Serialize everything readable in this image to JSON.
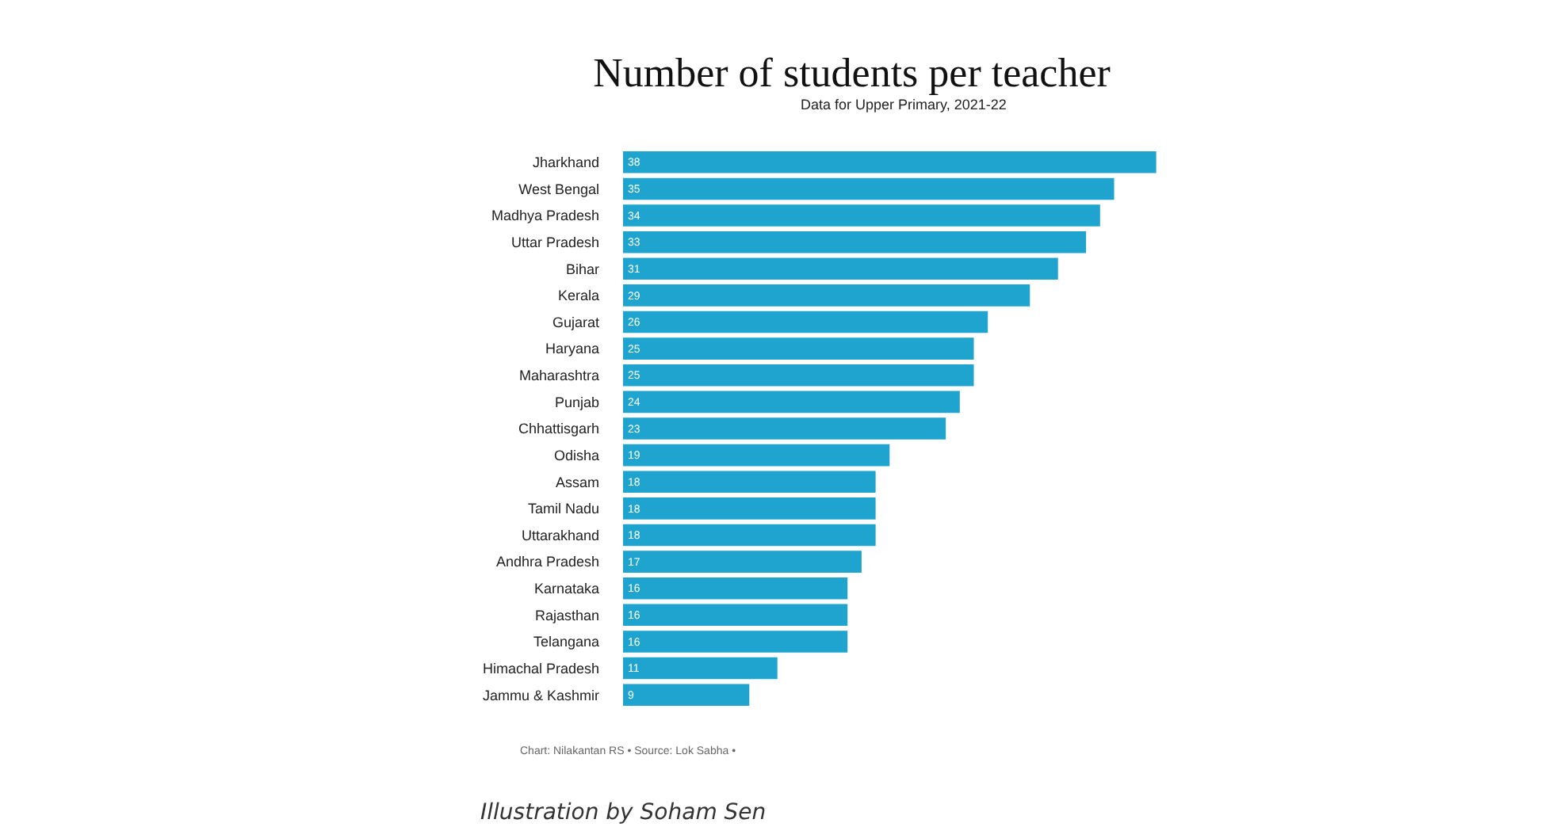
{
  "chart_data": {
    "type": "bar",
    "orientation": "horizontal",
    "title": "Number of students per teacher",
    "subtitle": "Data for Upper Primary, 2021-22",
    "categories": [
      "Jharkhand",
      "West Bengal",
      "Madhya Pradesh",
      "Uttar Pradesh",
      "Bihar",
      "Kerala",
      "Gujarat",
      "Haryana",
      "Maharashtra",
      "Punjab",
      "Chhattisgarh",
      "Odisha",
      "Assam",
      "Tamil Nadu",
      "Uttarakhand",
      "Andhra Pradesh",
      "Karnataka",
      "Rajasthan",
      "Telangana",
      "Himachal Pradesh",
      "Jammu & Kashmir"
    ],
    "values": [
      38,
      35,
      34,
      33,
      31,
      29,
      26,
      25,
      25,
      24,
      23,
      19,
      18,
      18,
      18,
      17,
      16,
      16,
      16,
      11,
      9
    ],
    "color": "#1ea4cf",
    "data_labels": true,
    "tick_labels": "y",
    "annotations": [
      "Chart: Nilakantan RS • Source: Lok Sabha •",
      "Illustration by Soham Sen"
    ]
  }
}
